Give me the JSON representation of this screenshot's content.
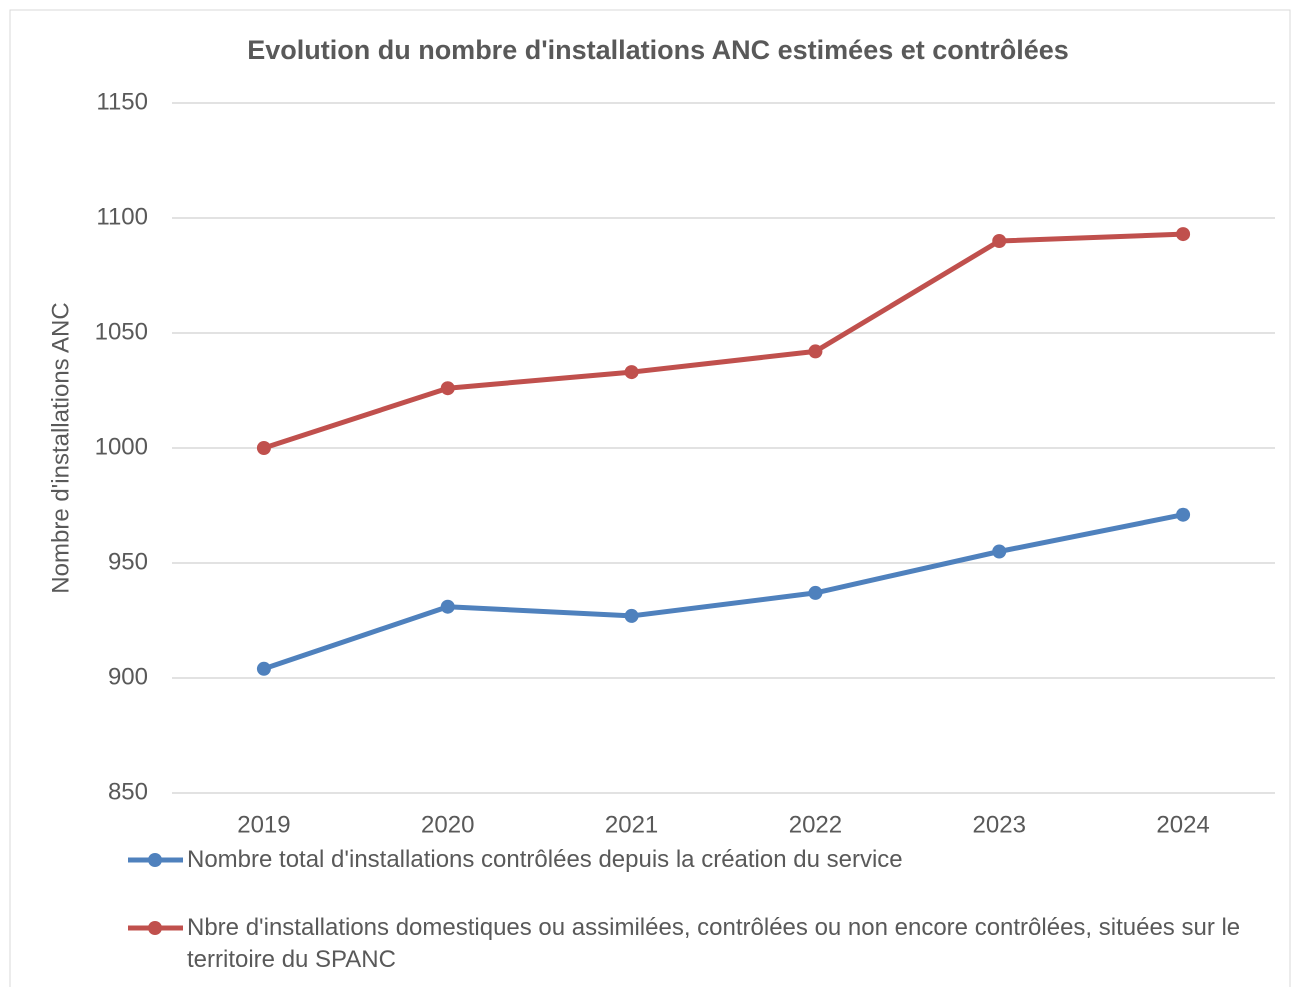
{
  "chart_data": {
    "type": "line",
    "title": "Evolution du nombre d'installations ANC estimées et contrôlées",
    "ylabel": "Nombre  d'installations ANC",
    "categories": [
      "2019",
      "2020",
      "2021",
      "2022",
      "2023",
      "2024"
    ],
    "series": [
      {
        "name": "Nombre total d'installations contrôlées depuis la création du service",
        "color": "#4f81bd",
        "values": [
          904,
          931,
          927,
          937,
          955,
          971
        ]
      },
      {
        "name": "Nbre d'installations domestiques ou assimilées, contrôlées ou non encore contrôlées, situées sur le territoire du SPANC",
        "color": "#c0504d",
        "values": [
          1000,
          1026,
          1033,
          1042,
          1090,
          1093
        ]
      }
    ],
    "ylim": [
      850,
      1150
    ],
    "yticks": [
      850,
      900,
      950,
      1000,
      1050,
      1100,
      1150
    ],
    "grid": true,
    "legend": "bottom"
  }
}
